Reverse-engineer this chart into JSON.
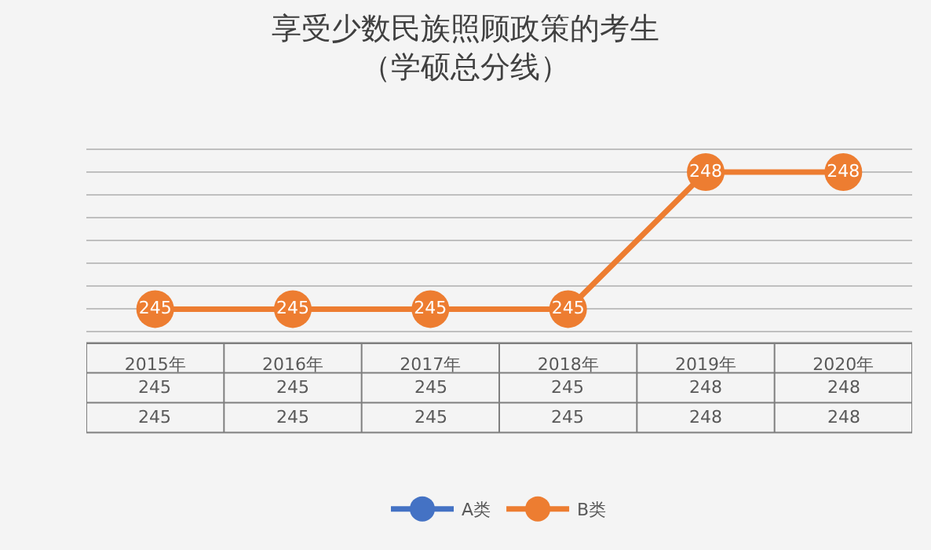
{
  "chart_data": {
    "type": "line",
    "title": "享受少数民族照顾政策的考生",
    "subtitle": "（学硕总分线）",
    "categories": [
      "2015年",
      "2016年",
      "2017年",
      "2018年",
      "2019年",
      "2020年"
    ],
    "series": [
      {
        "name": "A类",
        "color": "#4472c4",
        "values": [
          null,
          null,
          null,
          null,
          null,
          null
        ],
        "value_labels": [
          "245",
          "245",
          "245",
          "245",
          "248",
          "248"
        ]
      },
      {
        "name": "B类",
        "color": "#ed7d31",
        "values": [
          245,
          245,
          245,
          245,
          248,
          248
        ],
        "value_labels": [
          "245",
          "245",
          "245",
          "245",
          "248",
          "248"
        ]
      }
    ],
    "grid": true,
    "tick_labels": "x",
    "legend": "bottom",
    "marker": "circle",
    "line_style": "solid"
  }
}
